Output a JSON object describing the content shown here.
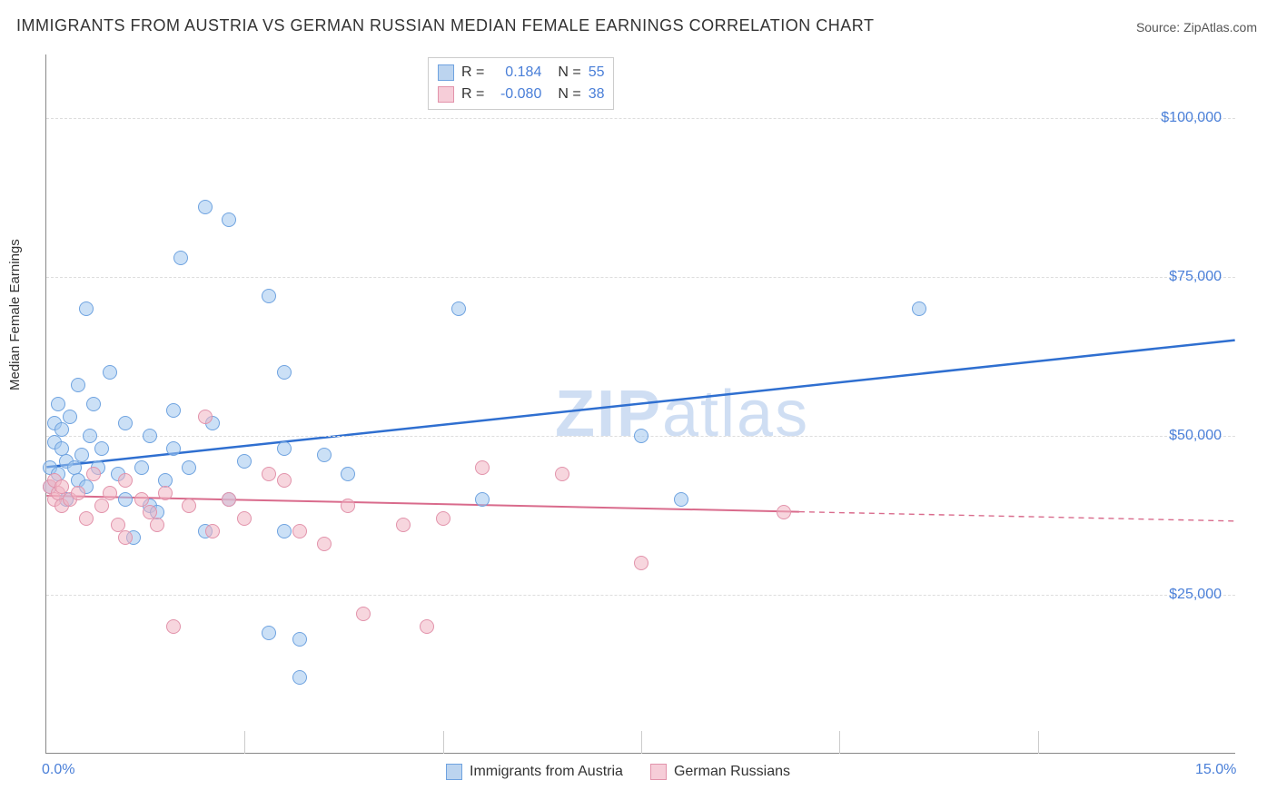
{
  "title": "IMMIGRANTS FROM AUSTRIA VS GERMAN RUSSIAN MEDIAN FEMALE EARNINGS CORRELATION CHART",
  "source": "Source: ZipAtlas.com",
  "watermark": "ZIPatlas",
  "ylabel": "Median Female Earnings",
  "chart": {
    "type": "scatter",
    "xlim": [
      0,
      15
    ],
    "ylim": [
      0,
      110000
    ],
    "x_ticks": [
      0,
      15
    ],
    "x_tick_labels": [
      "0.0%",
      "15.0%"
    ],
    "x_minor_tick_step": 2.5,
    "y_ticks": [
      25000,
      50000,
      75000,
      100000
    ],
    "y_tick_labels": [
      "$25,000",
      "$50,000",
      "$75,000",
      "$100,000"
    ],
    "grid_color": "#dddddd",
    "background_color": "#ffffff",
    "axis_color": "#888888",
    "tick_label_color": "#4a7fd8",
    "tick_label_fontsize": 16,
    "title_fontsize": 18,
    "ylabel_fontsize": 15
  },
  "legend_top": {
    "rows": [
      {
        "r_label": "R =",
        "r_value": "0.184",
        "n_label": "N =",
        "n_value": "55",
        "swatch_fill": "#bcd4ef",
        "swatch_border": "#6fa3e0"
      },
      {
        "r_label": "R =",
        "r_value": "-0.080",
        "n_label": "N =",
        "n_value": "38",
        "swatch_fill": "#f6cdd8",
        "swatch_border": "#e293ab"
      }
    ],
    "label_color": "#333333",
    "value_color": "#4a7fd8"
  },
  "legend_bottom": {
    "items": [
      {
        "label": "Immigrants from Austria",
        "swatch_fill": "#bcd4ef",
        "swatch_border": "#6fa3e0"
      },
      {
        "label": "German Russians",
        "swatch_fill": "#f6cdd8",
        "swatch_border": "#e293ab"
      }
    ],
    "label_color": "#333333"
  },
  "series": [
    {
      "name": "Immigrants from Austria",
      "marker_fill": "rgba(160,198,238,0.55)",
      "marker_border": "#6fa3e0",
      "marker_size": 16,
      "trend_color": "#2f6fd0",
      "trend_width": 2.5,
      "trend": {
        "x1": 0,
        "y1": 45000,
        "x2": 15,
        "y2": 65000,
        "solid_to_x": 15
      },
      "points": [
        [
          0.05,
          42000
        ],
        [
          0.05,
          45000
        ],
        [
          0.1,
          49000
        ],
        [
          0.1,
          52000
        ],
        [
          0.15,
          55000
        ],
        [
          0.15,
          44000
        ],
        [
          0.2,
          48000
        ],
        [
          0.2,
          51000
        ],
        [
          0.25,
          46000
        ],
        [
          0.25,
          40000
        ],
        [
          0.3,
          53000
        ],
        [
          0.35,
          45000
        ],
        [
          0.4,
          43000
        ],
        [
          0.4,
          58000
        ],
        [
          0.45,
          47000
        ],
        [
          0.5,
          70000
        ],
        [
          0.5,
          42000
        ],
        [
          0.55,
          50000
        ],
        [
          0.6,
          55000
        ],
        [
          0.65,
          45000
        ],
        [
          0.7,
          48000
        ],
        [
          0.8,
          60000
        ],
        [
          0.9,
          44000
        ],
        [
          1.0,
          52000
        ],
        [
          1.0,
          40000
        ],
        [
          1.1,
          34000
        ],
        [
          1.2,
          45000
        ],
        [
          1.3,
          39000
        ],
        [
          1.3,
          50000
        ],
        [
          1.4,
          38000
        ],
        [
          1.5,
          43000
        ],
        [
          1.6,
          48000
        ],
        [
          1.6,
          54000
        ],
        [
          1.7,
          78000
        ],
        [
          1.8,
          45000
        ],
        [
          2.0,
          35000
        ],
        [
          2.0,
          86000
        ],
        [
          2.1,
          52000
        ],
        [
          2.3,
          84000
        ],
        [
          2.3,
          40000
        ],
        [
          2.5,
          46000
        ],
        [
          2.8,
          72000
        ],
        [
          2.8,
          19000
        ],
        [
          3.0,
          35000
        ],
        [
          3.0,
          48000
        ],
        [
          3.0,
          60000
        ],
        [
          3.2,
          12000
        ],
        [
          3.2,
          18000
        ],
        [
          3.5,
          47000
        ],
        [
          3.8,
          44000
        ],
        [
          5.2,
          70000
        ],
        [
          5.5,
          40000
        ],
        [
          7.5,
          50000
        ],
        [
          8.0,
          40000
        ],
        [
          11.0,
          70000
        ]
      ]
    },
    {
      "name": "German Russians",
      "marker_fill": "rgba(240,180,195,0.55)",
      "marker_border": "#e293ab",
      "marker_size": 16,
      "trend_color": "#d96b8c",
      "trend_width": 2,
      "trend": {
        "x1": 0,
        "y1": 40500,
        "x2": 15,
        "y2": 36500,
        "solid_to_x": 9.5
      },
      "points": [
        [
          0.05,
          42000
        ],
        [
          0.1,
          40000
        ],
        [
          0.1,
          43000
        ],
        [
          0.15,
          41000
        ],
        [
          0.2,
          39000
        ],
        [
          0.2,
          42000
        ],
        [
          0.3,
          40000
        ],
        [
          0.4,
          41000
        ],
        [
          0.5,
          37000
        ],
        [
          0.6,
          44000
        ],
        [
          0.7,
          39000
        ],
        [
          0.8,
          41000
        ],
        [
          0.9,
          36000
        ],
        [
          1.0,
          34000
        ],
        [
          1.0,
          43000
        ],
        [
          1.2,
          40000
        ],
        [
          1.3,
          38000
        ],
        [
          1.4,
          36000
        ],
        [
          1.5,
          41000
        ],
        [
          1.6,
          20000
        ],
        [
          1.8,
          39000
        ],
        [
          2.0,
          53000
        ],
        [
          2.1,
          35000
        ],
        [
          2.3,
          40000
        ],
        [
          2.5,
          37000
        ],
        [
          2.8,
          44000
        ],
        [
          3.0,
          43000
        ],
        [
          3.2,
          35000
        ],
        [
          3.5,
          33000
        ],
        [
          3.8,
          39000
        ],
        [
          4.0,
          22000
        ],
        [
          4.5,
          36000
        ],
        [
          4.8,
          20000
        ],
        [
          5.0,
          37000
        ],
        [
          5.5,
          45000
        ],
        [
          6.5,
          44000
        ],
        [
          7.5,
          30000
        ],
        [
          9.3,
          38000
        ]
      ]
    }
  ]
}
